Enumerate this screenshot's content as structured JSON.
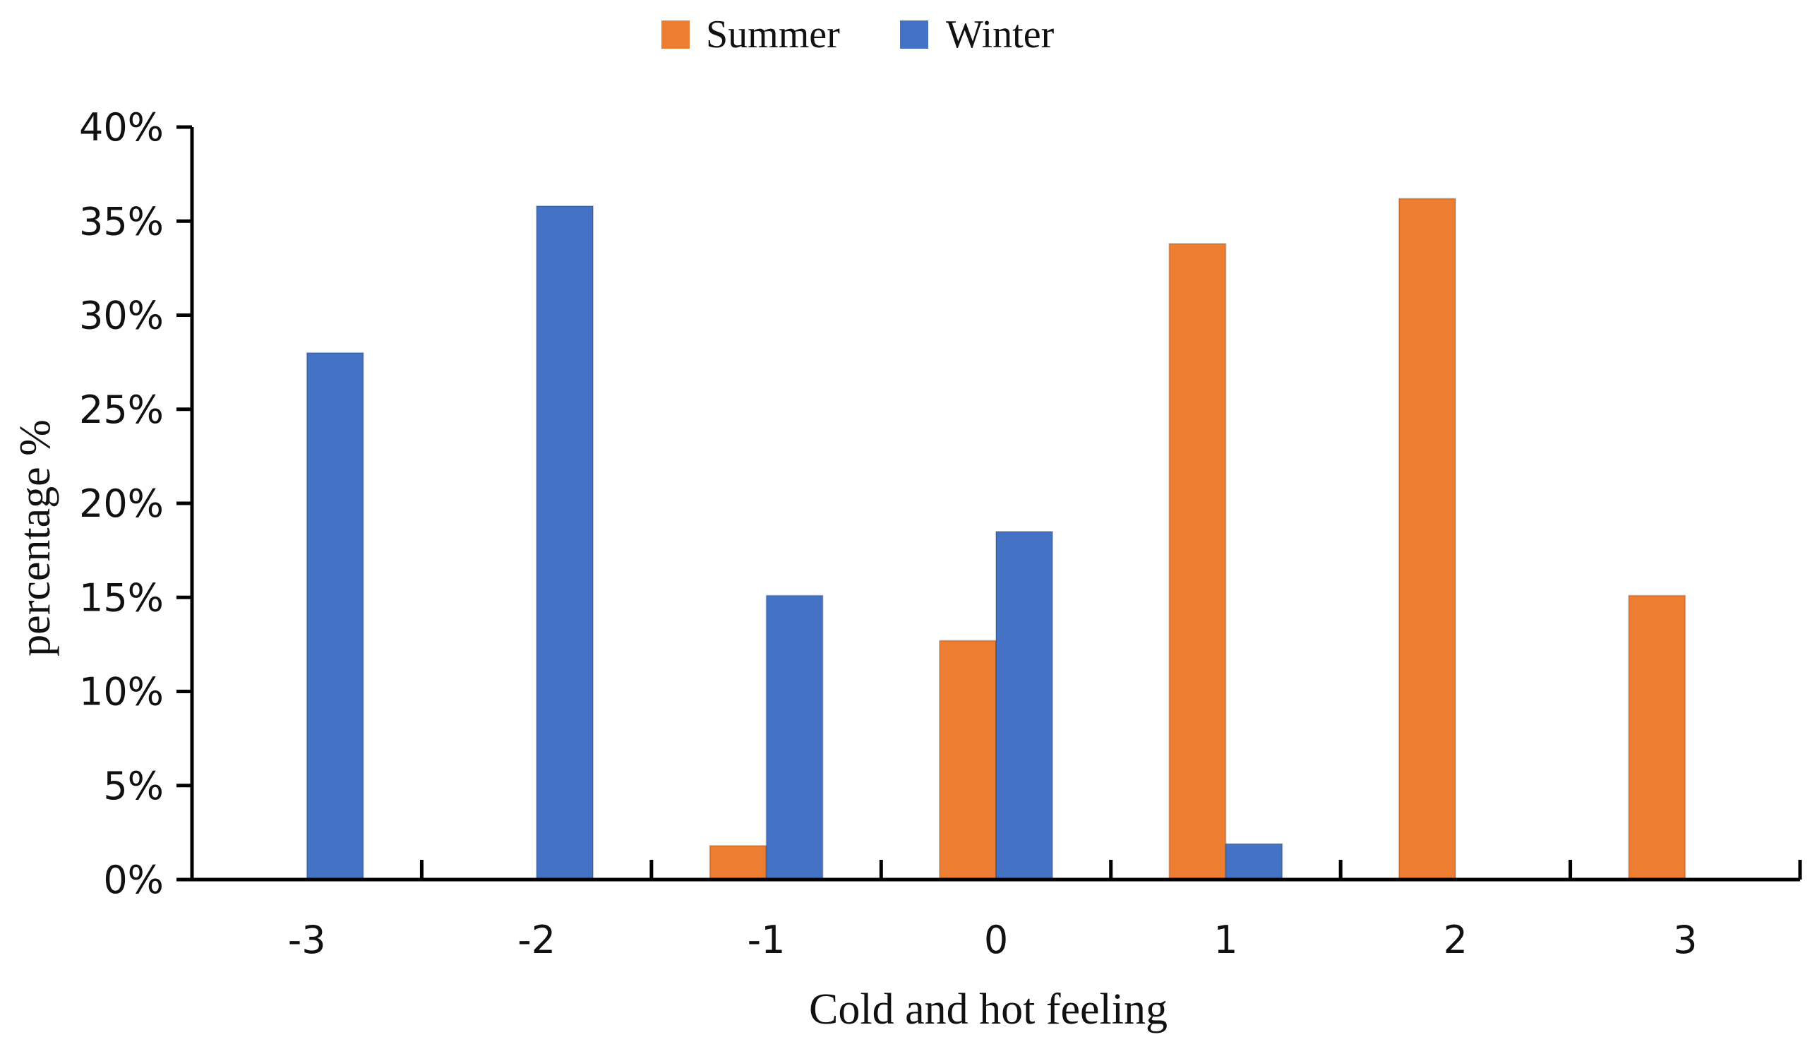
{
  "chart_data": {
    "type": "bar",
    "title": "",
    "xlabel": "Cold and hot feeling",
    "ylabel": "percentage %",
    "categories": [
      "-3",
      "-2",
      "-1",
      "0",
      "1",
      "2",
      "3"
    ],
    "ylim": [
      0,
      40
    ],
    "yticks": [
      "0%",
      "5%",
      "10%",
      "15%",
      "20%",
      "25%",
      "30%",
      "35%",
      "40%"
    ],
    "grid": false,
    "legend_position": "top-center",
    "series": [
      {
        "name": "Summer",
        "color": "#ED7D31",
        "values": [
          0,
          0,
          1.8,
          12.7,
          33.8,
          36.2,
          15.1
        ]
      },
      {
        "name": "Winter",
        "color": "#4472C4",
        "values": [
          28.0,
          35.8,
          15.1,
          18.5,
          1.9,
          0,
          0
        ]
      }
    ]
  }
}
